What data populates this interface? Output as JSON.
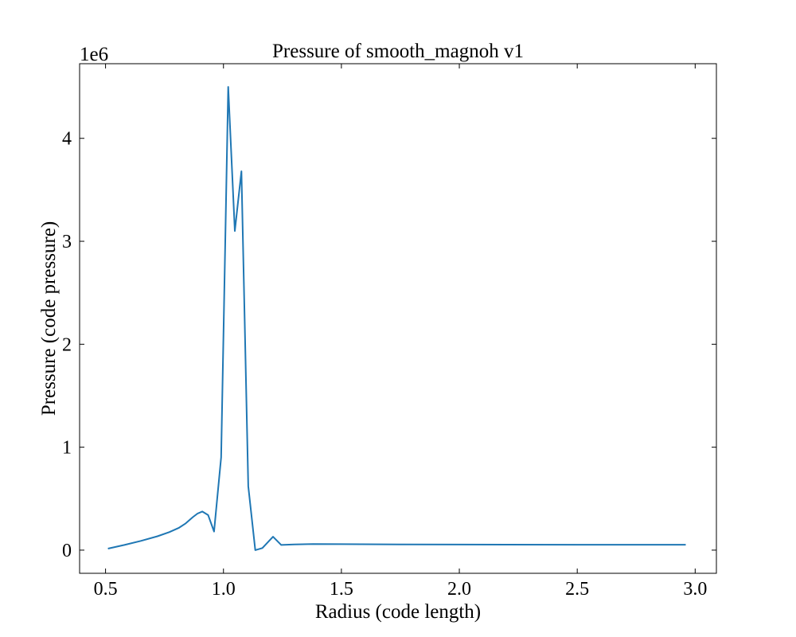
{
  "chart_data": {
    "type": "line",
    "title": "Pressure of smooth_magnoh v1",
    "xlabel": "Radius  (code length)",
    "ylabel": "Pressure  (code pressure)",
    "y_offset_label": "1e6",
    "xlim": [
      0.39,
      3.09
    ],
    "ylim": [
      -0.225,
      4.725
    ],
    "x_ticks": [
      {
        "value": 0.5,
        "label": "0.5"
      },
      {
        "value": 1.0,
        "label": "1.0"
      },
      {
        "value": 1.5,
        "label": "1.5"
      },
      {
        "value": 2.0,
        "label": "2.0"
      },
      {
        "value": 2.5,
        "label": "2.5"
      },
      {
        "value": 3.0,
        "label": "3.0"
      }
    ],
    "y_ticks": [
      {
        "value": 0,
        "label": "0"
      },
      {
        "value": 1,
        "label": "1"
      },
      {
        "value": 2,
        "label": "2"
      },
      {
        "value": 3,
        "label": "3"
      },
      {
        "value": 4,
        "label": "4"
      }
    ],
    "grid": false,
    "line_color": "#1f77b4",
    "series": [
      {
        "x": [
          0.51,
          0.58,
          0.65,
          0.72,
          0.77,
          0.81,
          0.84,
          0.87,
          0.89,
          0.91,
          0.935,
          0.96,
          0.99,
          1.02,
          1.048,
          1.076,
          1.105,
          1.135,
          1.165,
          1.21,
          1.245,
          1.3,
          1.38,
          1.5,
          1.75,
          2.0,
          2.5,
          2.96
        ],
        "y": [
          0.015,
          0.05,
          0.09,
          0.135,
          0.175,
          0.215,
          0.26,
          0.32,
          0.355,
          0.375,
          0.34,
          0.18,
          0.9,
          4.5,
          3.1,
          3.68,
          0.62,
          0.0,
          0.02,
          0.13,
          0.05,
          0.055,
          0.06,
          0.058,
          0.055,
          0.054,
          0.053,
          0.053
        ]
      }
    ]
  }
}
